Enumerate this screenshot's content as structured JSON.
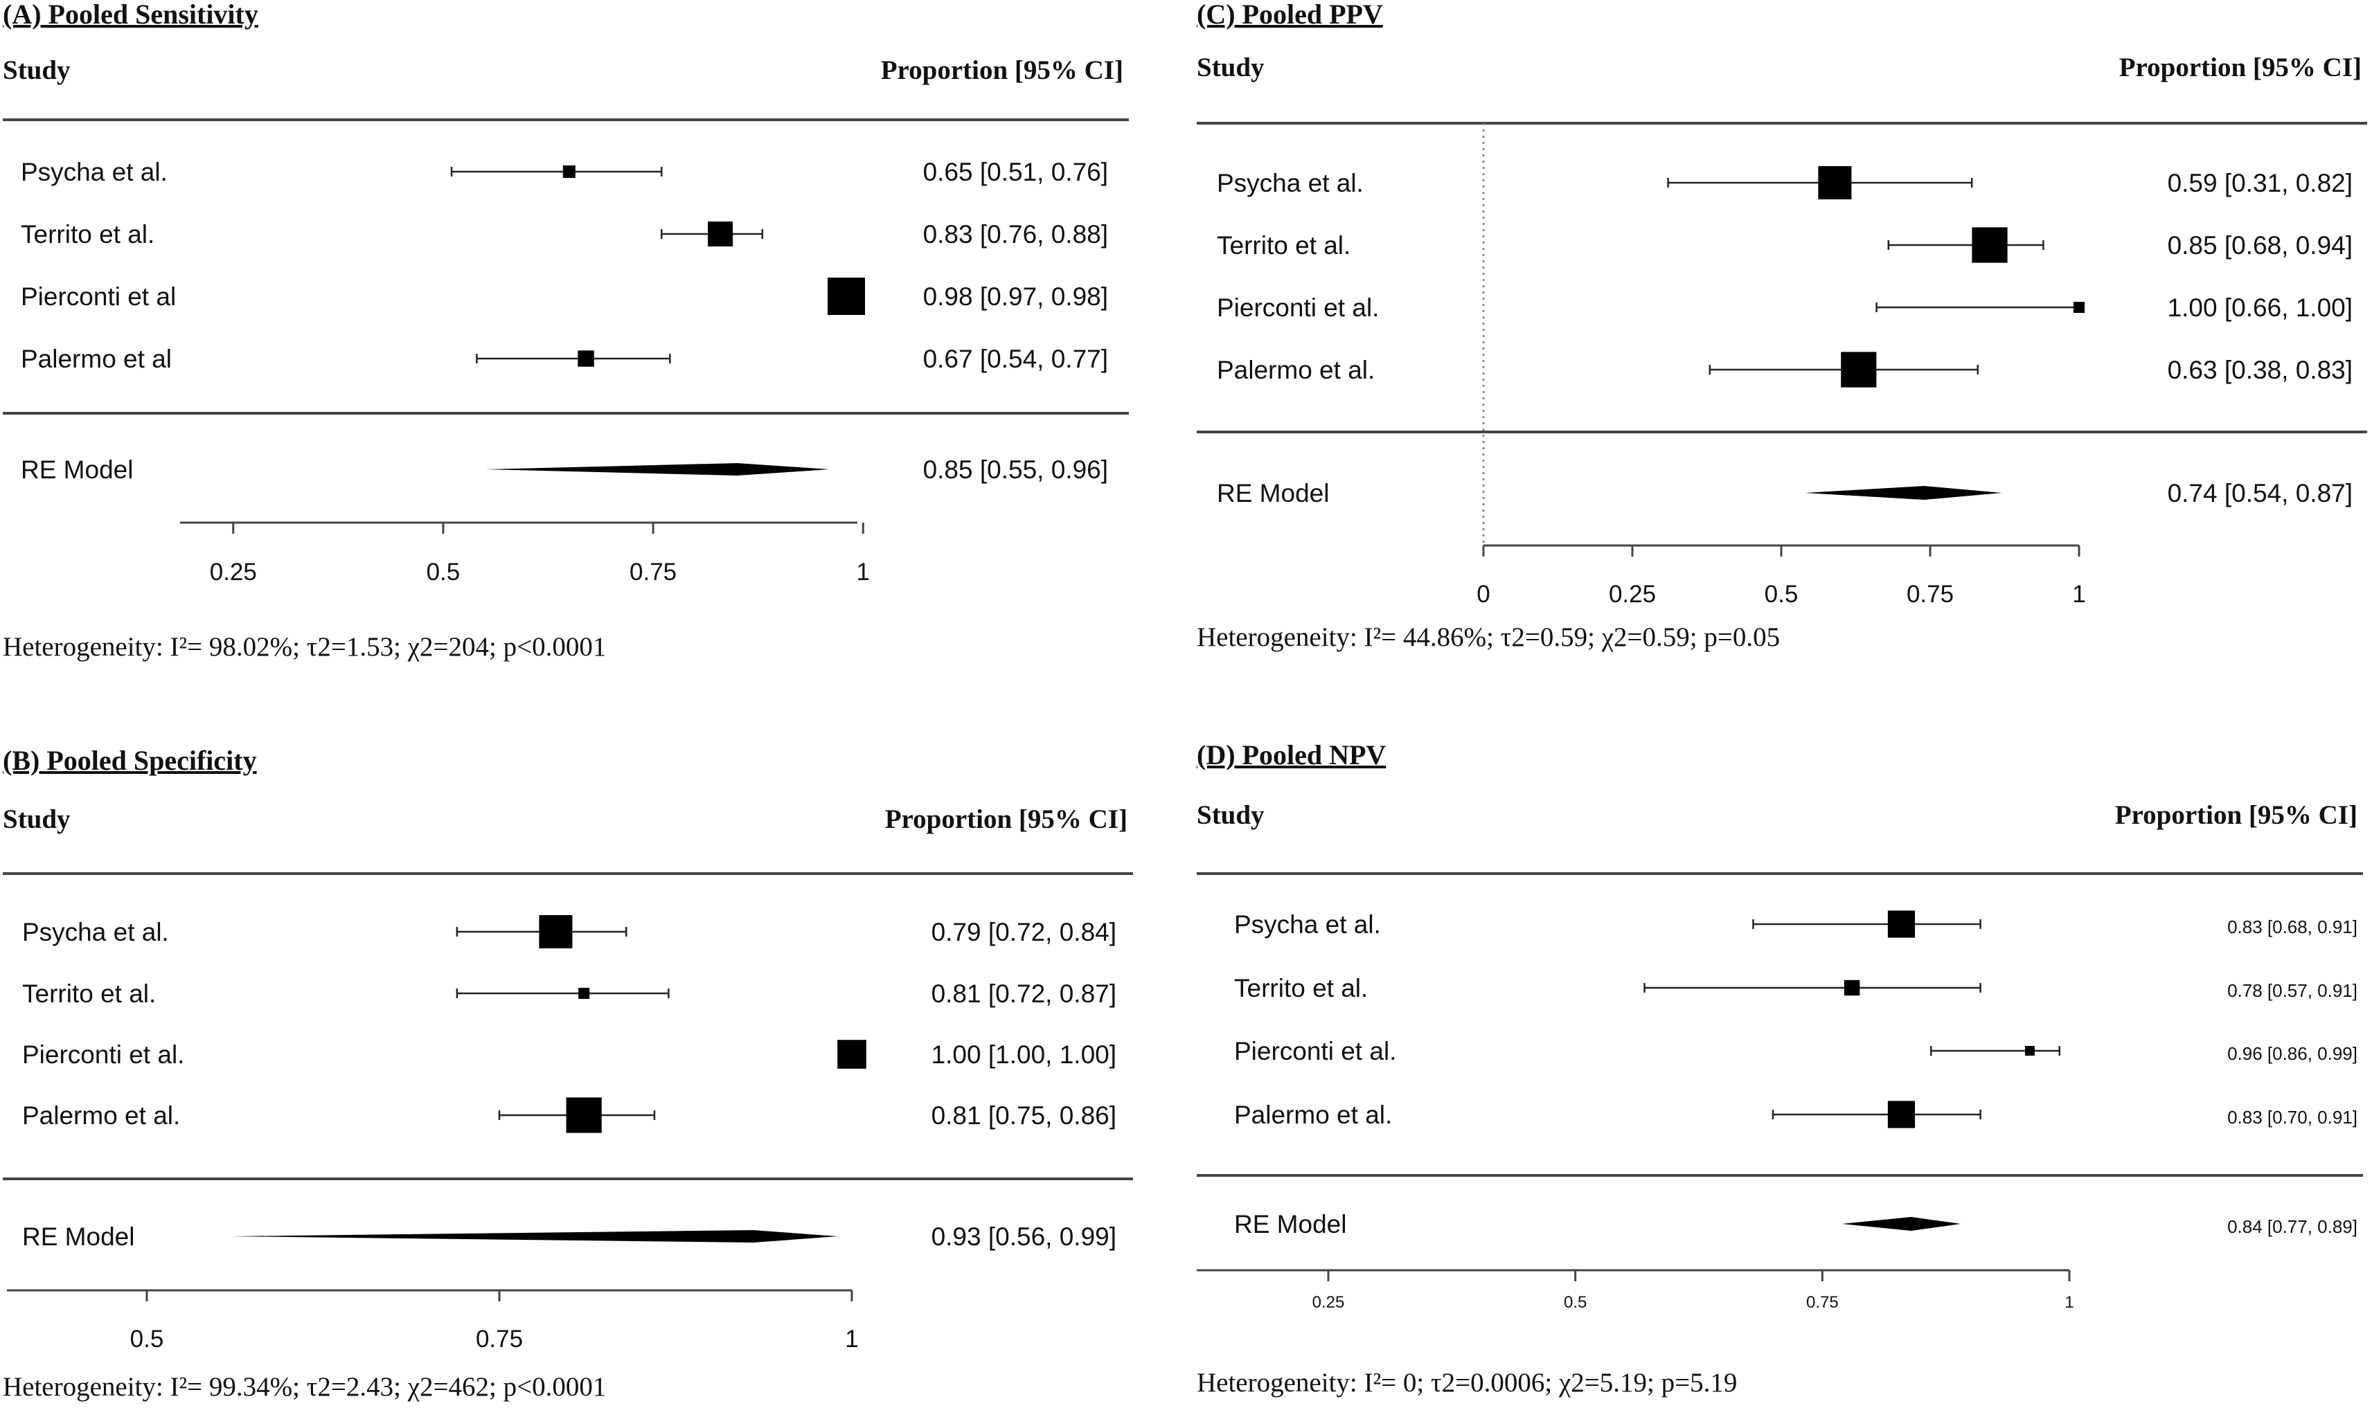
{
  "header_study": "Study",
  "header_proportion": "Proportion [95% CI]",
  "chart_data": [
    {
      "type": "forest",
      "title": "(A) Pooled Sensitivity",
      "studies": [
        {
          "name": "Psycha et al.",
          "est": 0.65,
          "lo": 0.51,
          "hi": 0.76,
          "weight": 1,
          "label": "0.65 [0.51, 0.76]"
        },
        {
          "name": "Territo et al.",
          "est": 0.83,
          "lo": 0.76,
          "hi": 0.88,
          "weight": 2,
          "label": "0.83 [0.76, 0.88]"
        },
        {
          "name": "Pierconti et al",
          "est": 0.98,
          "lo": 0.97,
          "hi": 0.98,
          "weight": 3,
          "label": "0.98 [0.97, 0.98]"
        },
        {
          "name": "Palermo et al",
          "est": 0.67,
          "lo": 0.54,
          "hi": 0.77,
          "weight": 1.3,
          "label": "0.67 [0.54, 0.77]"
        }
      ],
      "model": {
        "name": "RE Model",
        "est": 0.85,
        "lo": 0.55,
        "hi": 0.96,
        "label": "0.85 [0.55, 0.96]"
      },
      "xlim": [
        0.19,
        0.98
      ],
      "ticks": [
        0.25,
        0.5,
        0.75,
        1
      ],
      "tick_labels": [
        "0.25",
        "0.5",
        "0.75",
        "1"
      ],
      "reference_line": null,
      "heterogeneity": "Heterogeneity: I²= 98.02%; τ2=1.53; χ2=204; p<0.0001"
    },
    {
      "type": "forest",
      "title": "(B) Pooled Specificity",
      "studies": [
        {
          "name": "Psycha et al.",
          "est": 0.79,
          "lo": 0.72,
          "hi": 0.84,
          "weight": 3,
          "label": "0.79 [0.72, 0.84]"
        },
        {
          "name": "Territo et al.",
          "est": 0.81,
          "lo": 0.72,
          "hi": 0.87,
          "weight": 1,
          "label": "0.81 [0.72, 0.87]"
        },
        {
          "name": "Pierconti et al.",
          "est": 1.0,
          "lo": 1.0,
          "hi": 1.0,
          "weight": 2.6,
          "label": "1.00 [1.00, 1.00]"
        },
        {
          "name": "Palermo et al.",
          "est": 0.81,
          "lo": 0.75,
          "hi": 0.86,
          "weight": 3.2,
          "label": "0.81 [0.75, 0.86]"
        }
      ],
      "model": {
        "name": "RE Model",
        "est": 0.93,
        "lo": 0.56,
        "hi": 0.99,
        "label": "0.93 [0.56, 0.99]"
      },
      "xlim": [
        0.5,
        1.0
      ],
      "ticks": [
        0.5,
        0.75,
        1
      ],
      "tick_labels": [
        "0.5",
        "0.75",
        "1"
      ],
      "reference_line": null,
      "heterogeneity": "Heterogeneity: I²= 99.34%; τ2=2.43; χ2=462; p<0.0001"
    },
    {
      "type": "forest",
      "title": "(C) Pooled PPV",
      "studies": [
        {
          "name": "Psycha et al.",
          "est": 0.59,
          "lo": 0.31,
          "hi": 0.82,
          "weight": 3,
          "label": "0.59 [0.31, 0.82]"
        },
        {
          "name": "Territo et al.",
          "est": 0.85,
          "lo": 0.68,
          "hi": 0.94,
          "weight": 3.2,
          "label": "0.85 [0.68, 0.94]"
        },
        {
          "name": "Pierconti et al.",
          "est": 1.0,
          "lo": 0.66,
          "hi": 1.0,
          "weight": 1,
          "label": "1.00 [0.66, 1.00]"
        },
        {
          "name": "Palermo et al.",
          "est": 0.63,
          "lo": 0.38,
          "hi": 0.83,
          "weight": 3.2,
          "label": "0.63 [0.38, 0.83]"
        }
      ],
      "model": {
        "name": "RE Model",
        "est": 0.74,
        "lo": 0.54,
        "hi": 0.87,
        "label": "0.74 [0.54, 0.87]"
      },
      "xlim": [
        0,
        1
      ],
      "ticks": [
        0,
        0.25,
        0.5,
        0.75,
        1
      ],
      "tick_labels": [
        "0",
        "0.25",
        "0.5",
        "0.75",
        "1"
      ],
      "reference_line": 0,
      "heterogeneity": "Heterogeneity: I²= 44.86%; τ2=0.59; χ2=0.59; p=0.05"
    },
    {
      "type": "forest",
      "title": "(D) Pooled NPV",
      "studies": [
        {
          "name": "Psycha et al.",
          "est": 0.83,
          "lo": 0.68,
          "hi": 0.91,
          "weight": 2.8,
          "label": "0.83 [0.68, 0.91]"
        },
        {
          "name": "Territo et al.",
          "est": 0.78,
          "lo": 0.57,
          "hi": 0.91,
          "weight": 1.6,
          "label": "0.78 [0.57, 0.91]"
        },
        {
          "name": "Pierconti et al.",
          "est": 0.96,
          "lo": 0.86,
          "hi": 0.99,
          "weight": 1,
          "label": "0.96 [0.86, 0.99]"
        },
        {
          "name": "Palermo et al.",
          "est": 0.83,
          "lo": 0.7,
          "hi": 0.91,
          "weight": 2.8,
          "label": "0.83 [0.70, 0.91]"
        }
      ],
      "model": {
        "name": "RE Model",
        "est": 0.84,
        "lo": 0.77,
        "hi": 0.89,
        "label": "0.84 [0.77, 0.89]"
      },
      "xlim": [
        0.25,
        1
      ],
      "ticks": [
        0.25,
        0.5,
        0.75,
        1
      ],
      "tick_labels": [
        "0.25",
        "0.5",
        "0.75",
        "1"
      ],
      "reference_line": null,
      "heterogeneity": "Heterogeneity: I²= 0; τ2=0.0006; χ2=5.19; p=5.19"
    }
  ]
}
